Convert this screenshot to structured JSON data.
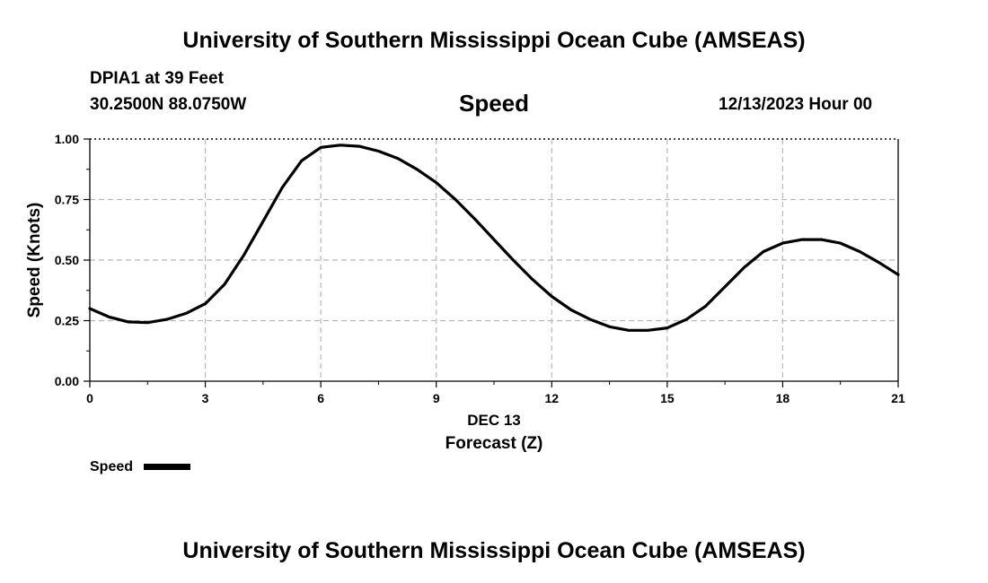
{
  "header": {
    "title": "University of Southern Mississippi Ocean Cube (AMSEAS)",
    "station": "DPIA1 at 39 Feet",
    "coords": "30.2500N  88.0750W",
    "datetime": "12/13/2023 Hour 00"
  },
  "footer": {
    "title": "University of Southern Mississippi Ocean Cube (AMSEAS)"
  },
  "legend": {
    "label": "Speed"
  },
  "chart_data": {
    "type": "line",
    "title": "Speed",
    "xlabel": "Forecast (Z)",
    "xlabel_date": "DEC 13",
    "ylabel": "Speed (Knots)",
    "xlim": [
      0,
      21
    ],
    "ylim": [
      0,
      1
    ],
    "xticks": [
      0,
      3,
      6,
      9,
      12,
      15,
      18,
      21
    ],
    "yticks": [
      0,
      0.25,
      0.5,
      0.75,
      1.0
    ],
    "ytick_labels": [
      "0.00",
      "0.25",
      "0.50",
      "0.75",
      "1.00"
    ],
    "grid": true,
    "series": [
      {
        "name": "Speed",
        "color": "#000000",
        "x": [
          0,
          0.5,
          1,
          1.5,
          2,
          2.5,
          3,
          3.5,
          4,
          4.5,
          5,
          5.5,
          6,
          6.5,
          7,
          7.5,
          8,
          8.5,
          9,
          9.5,
          10,
          10.5,
          11,
          11.5,
          12,
          12.5,
          13,
          13.5,
          14,
          14.5,
          15,
          15.5,
          16,
          16.5,
          17,
          17.5,
          18,
          18.5,
          19,
          19.5,
          20,
          20.5,
          21
        ],
        "values": [
          0.3,
          0.265,
          0.245,
          0.242,
          0.255,
          0.28,
          0.32,
          0.4,
          0.52,
          0.66,
          0.8,
          0.91,
          0.965,
          0.975,
          0.97,
          0.95,
          0.92,
          0.875,
          0.82,
          0.75,
          0.67,
          0.585,
          0.5,
          0.42,
          0.35,
          0.295,
          0.255,
          0.225,
          0.21,
          0.21,
          0.22,
          0.255,
          0.31,
          0.39,
          0.47,
          0.535,
          0.57,
          0.585,
          0.585,
          0.57,
          0.535,
          0.49,
          0.44
        ]
      }
    ]
  }
}
